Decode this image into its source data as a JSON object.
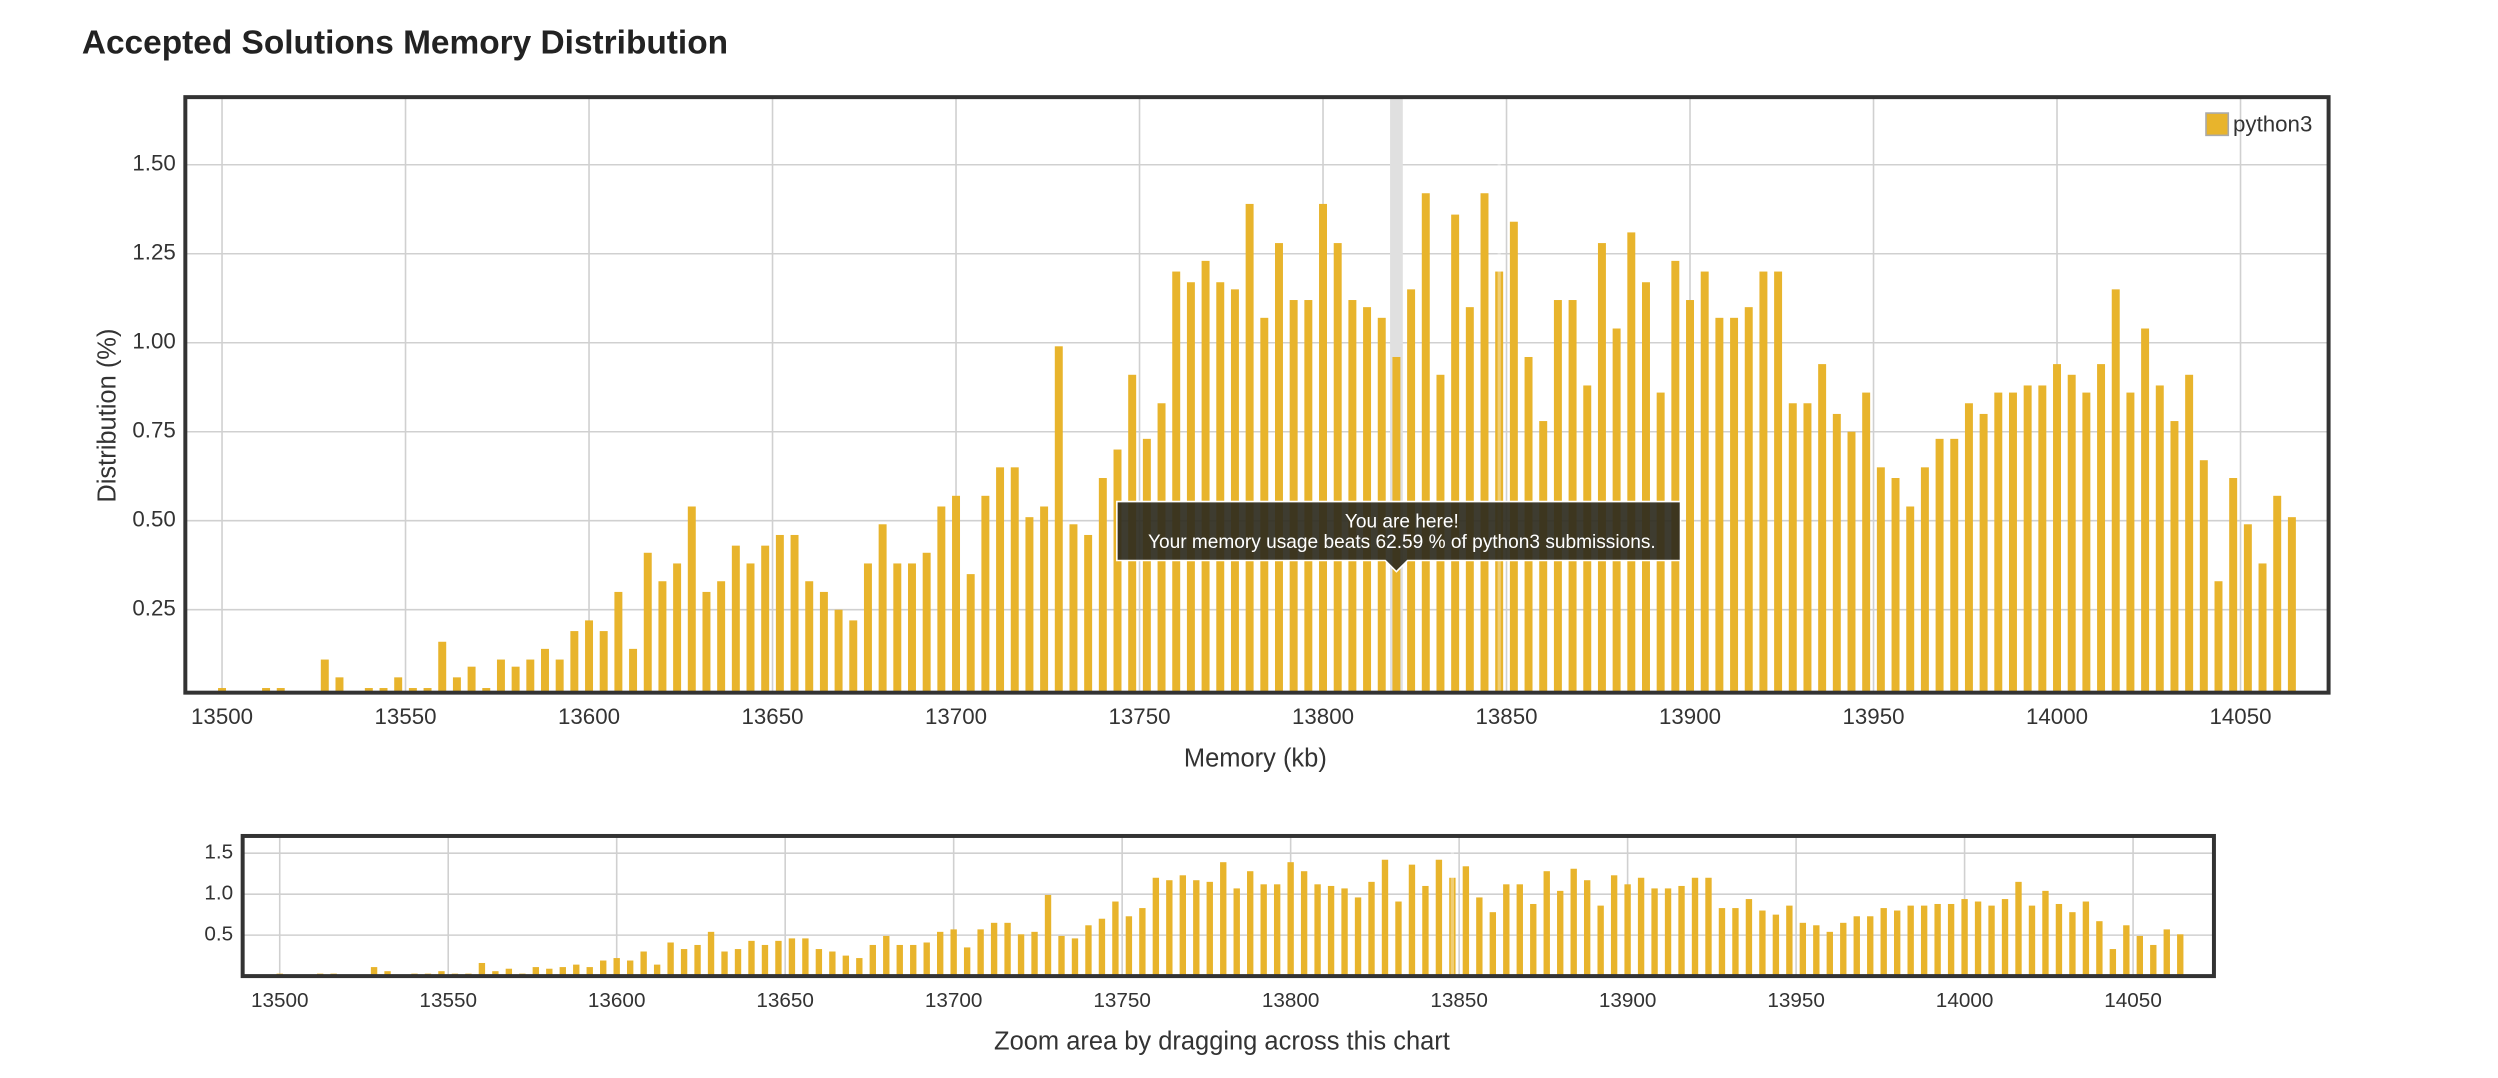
{
  "chart_data": [
    {
      "type": "bar",
      "title": "Accepted Solutions Memory Distribution",
      "xlabel": "Memory (kb)",
      "ylabel": "Distribution (%)",
      "x": [
        13500,
        13504,
        13508,
        13512,
        13516,
        13520,
        13524,
        13528,
        13532,
        13536,
        13540,
        13544,
        13548,
        13552,
        13556,
        13560,
        13564,
        13568,
        13572,
        13576,
        13580,
        13584,
        13588,
        13592,
        13596,
        13600,
        13604,
        13608,
        13612,
        13616,
        13620,
        13624,
        13628,
        13632,
        13636,
        13640,
        13644,
        13648,
        13652,
        13656,
        13660,
        13664,
        13668,
        13672,
        13676,
        13680,
        13684,
        13688,
        13692,
        13696,
        13700,
        13704,
        13708,
        13712,
        13716,
        13720,
        13724,
        13728,
        13732,
        13736,
        13740,
        13744,
        13748,
        13752,
        13756,
        13760,
        13764,
        13768,
        13772,
        13776,
        13780,
        13784,
        13788,
        13792,
        13796,
        13800,
        13804,
        13808,
        13812,
        13816,
        13820,
        13824,
        13828,
        13832,
        13836,
        13840,
        13844,
        13848,
        13852,
        13856,
        13860,
        13864,
        13868,
        13872,
        13876,
        13880,
        13884,
        13888,
        13892,
        13896,
        13900,
        13904,
        13908,
        13912,
        13916,
        13920,
        13924,
        13928,
        13932,
        13936,
        13940,
        13944,
        13948,
        13952,
        13956,
        13960,
        13964,
        13968,
        13972,
        13976,
        13980,
        13984,
        13988,
        13992,
        13996,
        14000,
        14004,
        14008,
        14012,
        14016,
        14020,
        14024,
        14028,
        14032,
        14036,
        14040,
        14044,
        14048,
        14052,
        14056,
        14060,
        14064
      ],
      "series": [
        {
          "name": "python3",
          "color": "#e8b42c",
          "values": [
            0.03,
            0,
            0,
            0.03,
            0.03,
            0,
            0,
            0.11,
            0.06,
            0,
            0.03,
            0.03,
            0.06,
            0.03,
            0.03,
            0.16,
            0.06,
            0.09,
            0.03,
            0.11,
            0.09,
            0.11,
            0.14,
            0.11,
            0.19,
            0.22,
            0.19,
            0.3,
            0.14,
            0.41,
            0.33,
            0.38,
            0.54,
            0.3,
            0.33,
            0.43,
            0.38,
            0.43,
            0.46,
            0.46,
            0.33,
            0.3,
            0.25,
            0.22,
            0.38,
            0.49,
            0.38,
            0.38,
            0.41,
            0.54,
            0.57,
            0.35,
            0.57,
            0.65,
            0.65,
            0.51,
            0.54,
            0.99,
            0.49,
            0.46,
            0.62,
            0.7,
            0.91,
            0.73,
            0.83,
            1.2,
            1.17,
            1.23,
            1.17,
            1.15,
            1.39,
            1.07,
            1.28,
            1.12,
            1.12,
            1.39,
            1.28,
            1.12,
            1.1,
            1.07,
            0.96,
            1.15,
            1.42,
            0.91,
            1.36,
            1.1,
            1.42,
            1.2,
            1.34,
            0.96,
            0.78,
            1.12,
            1.12,
            0.88,
            1.28,
            1.04,
            1.31,
            1.17,
            0.86,
            1.23,
            1.12,
            1.2,
            1.07,
            1.07,
            1.1,
            1.2,
            1.2,
            0.83,
            0.83,
            0.94,
            0.8,
            0.75,
            0.86,
            0.65,
            0.62,
            0.54,
            0.65,
            0.73,
            0.73,
            0.83,
            0.8,
            0.86,
            0.86,
            0.88,
            0.88,
            0.94,
            0.91,
            0.86,
            0.94,
            1.15,
            0.86,
            1.04,
            0.88,
            0.78,
            0.91,
            0.67,
            0.33,
            0.62,
            0.49,
            0.38,
            0.57,
            0.51
          ]
        }
      ],
      "xlim": [
        13490,
        14074
      ],
      "xticks": [
        13500,
        13550,
        13600,
        13650,
        13700,
        13750,
        13800,
        13850,
        13900,
        13950,
        14000,
        14050
      ],
      "ylim": [
        0.017,
        1.69
      ],
      "yticks": [
        0.25,
        {
          "value": 0.5,
          "label": "0.50"
        },
        0.75,
        {
          "value": 1,
          "label": "1.00"
        },
        1.25,
        {
          "value": 1.5,
          "label": "1.50"
        }
      ],
      "grid": true,
      "legend": "top-right",
      "hover_x": 13820,
      "marker_x": 13848,
      "annotations": [
        "You are here!",
        "Your memory usage beats 62.59 % of python3 submissions."
      ]
    },
    {
      "type": "bar",
      "xlabel": "Zoom area by dragging across this chart",
      "xlim": [
        13489,
        14074
      ],
      "xticks": [
        13500,
        13550,
        13600,
        13650,
        13700,
        13750,
        13800,
        13850,
        13900,
        13950,
        14000,
        14050
      ],
      "ylim": [
        0,
        1.71
      ],
      "yticks": [
        0.5,
        {
          "value": 1,
          "label": "1.0"
        },
        {
          "value": 1.5,
          "label": "1.5"
        }
      ],
      "grid": true
    }
  ]
}
